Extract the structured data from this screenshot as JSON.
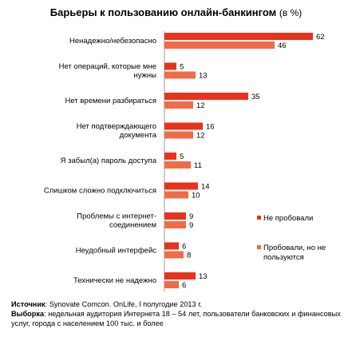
{
  "chart_data": {
    "type": "bar",
    "orientation": "horizontal",
    "title": "Барьеры к пользованию онлайн-банкингом",
    "title_unit": "(в %)",
    "categories": [
      [
        "Ненадежно/небезопасно"
      ],
      [
        "Нет операций, которые мне",
        "нужны"
      ],
      [
        "Нет времени разбираться"
      ],
      [
        "Нет подтверждающего",
        "документа"
      ],
      [
        "Я забыл(а) пароль доступа"
      ],
      [
        "Слишком сложно подключиться"
      ],
      [
        "Проблемы с интернет-",
        "соединением"
      ],
      [
        "Неудобный интерфейс"
      ],
      [
        "Технически не надежно"
      ]
    ],
    "series": [
      {
        "name": "Не пробовали",
        "color": "#e8331c",
        "values": [
          62,
          5,
          35,
          16,
          5,
          14,
          9,
          6,
          13
        ]
      },
      {
        "name": "Пробовали, но не пользуются",
        "color": "#f26b47",
        "values": [
          46,
          13,
          12,
          12,
          11,
          10,
          9,
          8,
          6
        ]
      }
    ],
    "legend_position": "right",
    "grid": false
  },
  "footer": {
    "source_label": "Источник",
    "source_text": ": Synovate Comcon. OnLife, I полугодие 2013 г.",
    "sample_label": "Выборка",
    "sample_text": ": недельная аудитория Интернета 18 – 54 лет, пользователи банковских и финансовых услуг, города с населением 100 тыс. и более"
  }
}
